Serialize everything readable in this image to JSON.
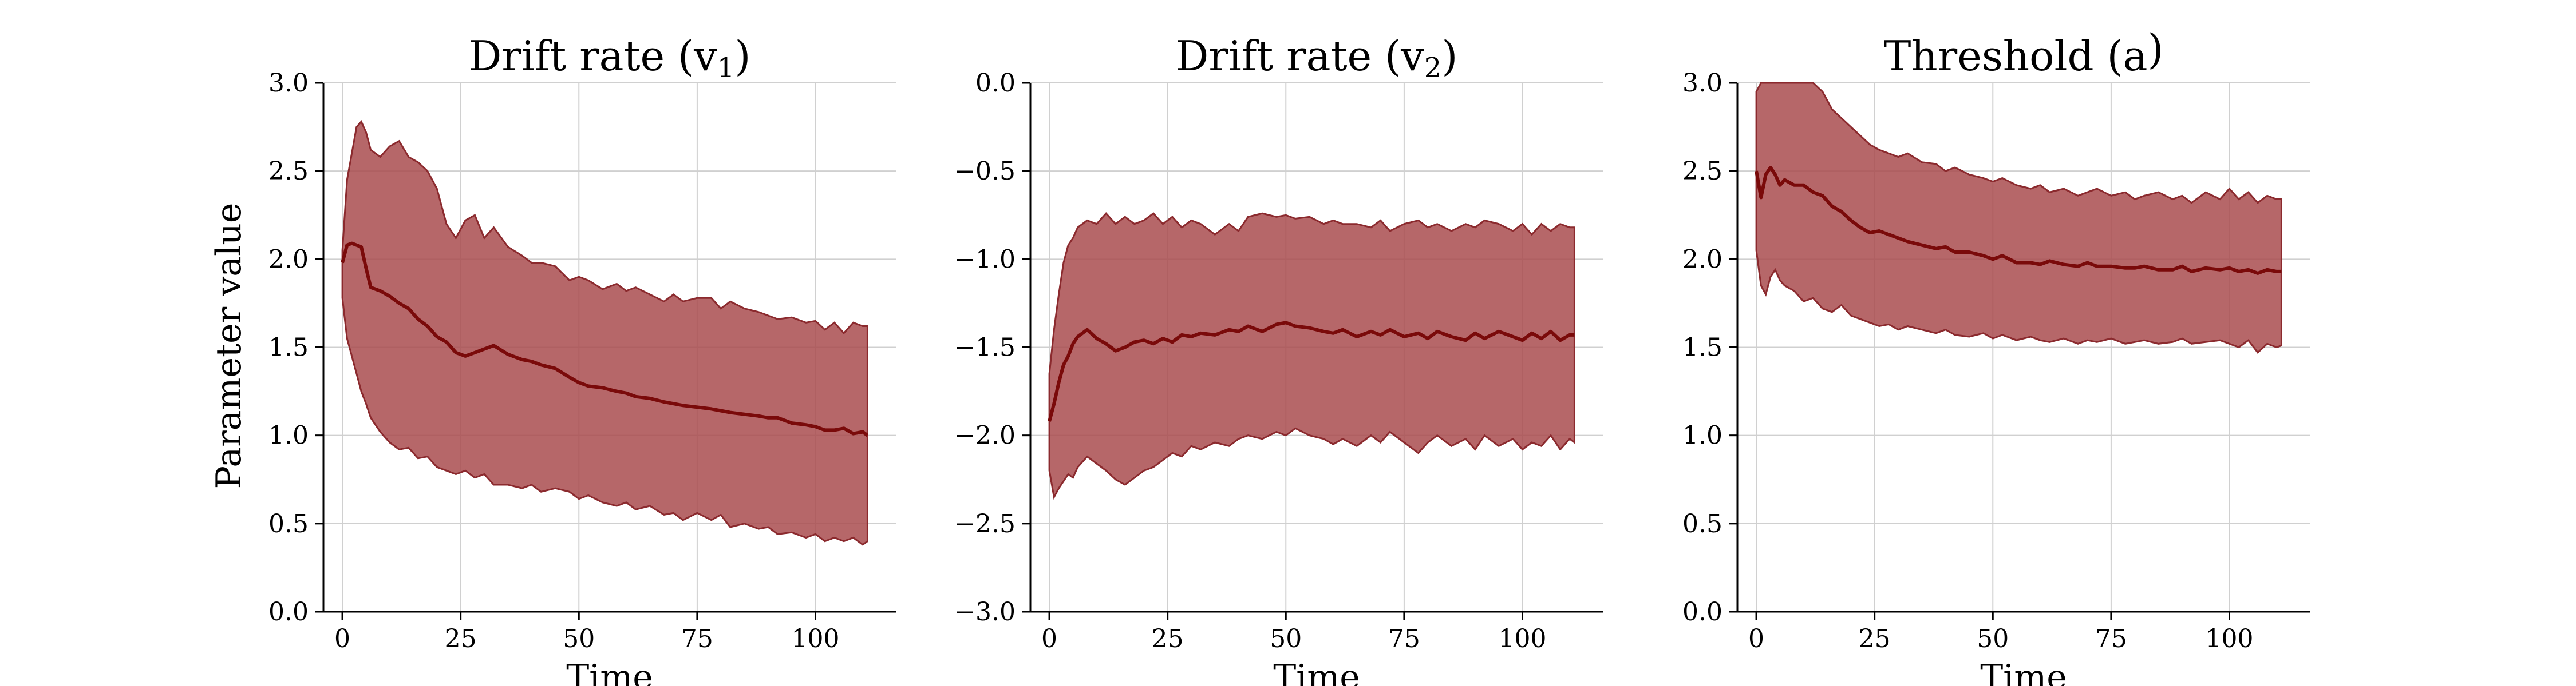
{
  "figure": {
    "ylabel": "Parameter value",
    "band_color": "#a94c4f",
    "band_edge_color": "#8b2a2e",
    "line_color": "#7a0a0a"
  },
  "chart_data": [
    {
      "type": "area",
      "title": "Drift rate (v",
      "title_sub": "1",
      "title_suffix": ")",
      "xlabel": "Time",
      "xlim": [
        -4,
        117
      ],
      "ylim": [
        0,
        3
      ],
      "xticks": [
        0,
        25,
        50,
        75,
        100
      ],
      "yticks": [
        0.0,
        0.5,
        1.0,
        1.5,
        2.0,
        2.5,
        3.0
      ],
      "ytick_labels": [
        "0.0",
        "0.5",
        "1.0",
        "1.5",
        "2.0",
        "2.5",
        "3.0"
      ],
      "grid": true,
      "x": [
        0,
        1,
        2,
        3,
        4,
        5,
        6,
        8,
        10,
        12,
        14,
        16,
        18,
        20,
        22,
        24,
        26,
        28,
        30,
        32,
        35,
        38,
        40,
        42,
        45,
        48,
        50,
        52,
        55,
        58,
        60,
        62,
        65,
        68,
        70,
        72,
        75,
        78,
        80,
        82,
        85,
        88,
        90,
        92,
        95,
        98,
        100,
        102,
        104,
        106,
        108,
        110,
        111
      ],
      "mean": [
        1.98,
        2.08,
        2.09,
        2.08,
        2.07,
        1.95,
        1.84,
        1.82,
        1.79,
        1.75,
        1.72,
        1.66,
        1.62,
        1.56,
        1.53,
        1.47,
        1.45,
        1.47,
        1.49,
        1.51,
        1.46,
        1.43,
        1.42,
        1.4,
        1.38,
        1.33,
        1.3,
        1.28,
        1.27,
        1.25,
        1.24,
        1.22,
        1.21,
        1.19,
        1.18,
        1.17,
        1.16,
        1.15,
        1.14,
        1.13,
        1.12,
        1.11,
        1.1,
        1.1,
        1.07,
        1.06,
        1.05,
        1.03,
        1.03,
        1.04,
        1.01,
        1.02,
        1.0
      ],
      "upper": [
        2.05,
        2.45,
        2.6,
        2.75,
        2.78,
        2.72,
        2.62,
        2.58,
        2.64,
        2.67,
        2.58,
        2.55,
        2.5,
        2.4,
        2.2,
        2.12,
        2.22,
        2.25,
        2.12,
        2.18,
        2.07,
        2.02,
        1.98,
        1.98,
        1.96,
        1.88,
        1.9,
        1.88,
        1.83,
        1.86,
        1.82,
        1.84,
        1.8,
        1.76,
        1.8,
        1.76,
        1.78,
        1.78,
        1.72,
        1.76,
        1.72,
        1.7,
        1.68,
        1.66,
        1.67,
        1.64,
        1.65,
        1.6,
        1.64,
        1.58,
        1.64,
        1.62,
        1.62
      ],
      "lower": [
        1.78,
        1.55,
        1.45,
        1.35,
        1.25,
        1.18,
        1.1,
        1.02,
        0.96,
        0.92,
        0.93,
        0.87,
        0.88,
        0.82,
        0.8,
        0.78,
        0.8,
        0.76,
        0.78,
        0.72,
        0.72,
        0.7,
        0.72,
        0.68,
        0.7,
        0.68,
        0.64,
        0.66,
        0.62,
        0.6,
        0.62,
        0.58,
        0.6,
        0.55,
        0.56,
        0.52,
        0.56,
        0.52,
        0.55,
        0.48,
        0.5,
        0.47,
        0.48,
        0.44,
        0.45,
        0.42,
        0.44,
        0.4,
        0.42,
        0.4,
        0.42,
        0.38,
        0.4
      ]
    },
    {
      "type": "area",
      "title": "Drift rate (v",
      "title_sub": "2",
      "title_suffix": ")",
      "xlabel": "Time",
      "xlim": [
        -4,
        117
      ],
      "ylim": [
        -3,
        0
      ],
      "xticks": [
        0,
        25,
        50,
        75,
        100
      ],
      "yticks": [
        0.0,
        -0.5,
        -1.0,
        -1.5,
        -2.0,
        -2.5,
        -3.0
      ],
      "ytick_labels": [
        "0.0",
        "−0.5",
        "−1.0",
        "−1.5",
        "−2.0",
        "−2.5",
        "−3.0"
      ],
      "grid": true,
      "x": [
        0,
        1,
        2,
        3,
        4,
        5,
        6,
        8,
        10,
        12,
        14,
        16,
        18,
        20,
        22,
        24,
        26,
        28,
        30,
        32,
        35,
        38,
        40,
        42,
        45,
        48,
        50,
        52,
        55,
        58,
        60,
        62,
        65,
        68,
        70,
        72,
        75,
        78,
        80,
        82,
        85,
        88,
        90,
        92,
        95,
        98,
        100,
        102,
        104,
        106,
        108,
        110,
        111
      ],
      "mean": [
        -1.92,
        -1.82,
        -1.7,
        -1.6,
        -1.55,
        -1.48,
        -1.44,
        -1.4,
        -1.45,
        -1.48,
        -1.52,
        -1.5,
        -1.47,
        -1.46,
        -1.48,
        -1.45,
        -1.47,
        -1.43,
        -1.44,
        -1.42,
        -1.43,
        -1.4,
        -1.41,
        -1.38,
        -1.41,
        -1.37,
        -1.36,
        -1.38,
        -1.39,
        -1.41,
        -1.42,
        -1.4,
        -1.44,
        -1.41,
        -1.43,
        -1.4,
        -1.44,
        -1.42,
        -1.45,
        -1.41,
        -1.44,
        -1.46,
        -1.42,
        -1.45,
        -1.41,
        -1.44,
        -1.46,
        -1.42,
        -1.45,
        -1.41,
        -1.46,
        -1.43,
        -1.43
      ],
      "upper": [
        -1.65,
        -1.4,
        -1.2,
        -1.02,
        -0.92,
        -0.88,
        -0.82,
        -0.78,
        -0.8,
        -0.74,
        -0.8,
        -0.76,
        -0.8,
        -0.78,
        -0.74,
        -0.8,
        -0.76,
        -0.82,
        -0.78,
        -0.8,
        -0.86,
        -0.8,
        -0.84,
        -0.76,
        -0.74,
        -0.76,
        -0.75,
        -0.77,
        -0.76,
        -0.8,
        -0.78,
        -0.8,
        -0.8,
        -0.82,
        -0.78,
        -0.84,
        -0.8,
        -0.78,
        -0.82,
        -0.8,
        -0.84,
        -0.8,
        -0.82,
        -0.78,
        -0.8,
        -0.84,
        -0.8,
        -0.86,
        -0.8,
        -0.84,
        -0.8,
        -0.82,
        -0.82
      ],
      "lower": [
        -2.2,
        -2.35,
        -2.3,
        -2.26,
        -2.22,
        -2.24,
        -2.18,
        -2.12,
        -2.16,
        -2.2,
        -2.25,
        -2.28,
        -2.24,
        -2.2,
        -2.18,
        -2.14,
        -2.1,
        -2.12,
        -2.06,
        -2.08,
        -2.04,
        -2.06,
        -2.02,
        -2.0,
        -2.02,
        -1.98,
        -2.0,
        -1.96,
        -2.0,
        -2.02,
        -2.05,
        -2.02,
        -2.06,
        -2.0,
        -2.04,
        -1.98,
        -2.04,
        -2.1,
        -2.04,
        -2.0,
        -2.06,
        -2.02,
        -2.08,
        -2.0,
        -2.06,
        -2.02,
        -2.08,
        -2.04,
        -2.06,
        -2.0,
        -2.08,
        -2.02,
        -2.04
      ]
    },
    {
      "type": "area",
      "title": "Threshold (a",
      "title_sub": "",
      "title_suffix": ")",
      "xlabel": "Time",
      "xlim": [
        -4,
        117
      ],
      "ylim": [
        0,
        3
      ],
      "xticks": [
        0,
        25,
        50,
        75,
        100
      ],
      "yticks": [
        0.0,
        0.5,
        1.0,
        1.5,
        2.0,
        2.5,
        3.0
      ],
      "ytick_labels": [
        "0.0",
        "0.5",
        "1.0",
        "1.5",
        "2.0",
        "2.5",
        "3.0"
      ],
      "grid": true,
      "x": [
        0,
        1,
        2,
        3,
        4,
        5,
        6,
        8,
        10,
        12,
        14,
        16,
        18,
        20,
        22,
        24,
        26,
        28,
        30,
        32,
        35,
        38,
        40,
        42,
        45,
        48,
        50,
        52,
        55,
        58,
        60,
        62,
        65,
        68,
        70,
        72,
        75,
        78,
        80,
        82,
        85,
        88,
        90,
        92,
        95,
        98,
        100,
        102,
        104,
        106,
        108,
        110,
        111
      ],
      "mean": [
        2.5,
        2.35,
        2.48,
        2.52,
        2.48,
        2.42,
        2.45,
        2.42,
        2.42,
        2.38,
        2.36,
        2.3,
        2.27,
        2.22,
        2.18,
        2.15,
        2.16,
        2.14,
        2.12,
        2.1,
        2.08,
        2.06,
        2.07,
        2.04,
        2.04,
        2.02,
        2.0,
        2.02,
        1.98,
        1.98,
        1.97,
        1.99,
        1.97,
        1.96,
        1.98,
        1.96,
        1.96,
        1.95,
        1.95,
        1.96,
        1.94,
        1.94,
        1.96,
        1.93,
        1.95,
        1.94,
        1.95,
        1.93,
        1.94,
        1.92,
        1.94,
        1.93,
        1.93
      ],
      "upper": [
        2.95,
        3.0,
        3.0,
        3.0,
        3.0,
        3.0,
        3.0,
        3.0,
        3.0,
        3.0,
        2.95,
        2.85,
        2.8,
        2.75,
        2.7,
        2.65,
        2.62,
        2.6,
        2.58,
        2.6,
        2.55,
        2.54,
        2.5,
        2.52,
        2.48,
        2.46,
        2.44,
        2.46,
        2.42,
        2.4,
        2.42,
        2.38,
        2.4,
        2.36,
        2.38,
        2.4,
        2.36,
        2.38,
        2.34,
        2.36,
        2.38,
        2.34,
        2.36,
        2.32,
        2.38,
        2.34,
        2.4,
        2.34,
        2.38,
        2.32,
        2.36,
        2.34,
        2.34
      ],
      "lower": [
        2.05,
        1.85,
        1.8,
        1.9,
        1.94,
        1.88,
        1.85,
        1.82,
        1.76,
        1.78,
        1.72,
        1.7,
        1.74,
        1.68,
        1.66,
        1.64,
        1.62,
        1.63,
        1.6,
        1.62,
        1.6,
        1.58,
        1.6,
        1.57,
        1.56,
        1.58,
        1.55,
        1.57,
        1.54,
        1.56,
        1.54,
        1.53,
        1.55,
        1.52,
        1.54,
        1.53,
        1.55,
        1.52,
        1.53,
        1.54,
        1.52,
        1.53,
        1.55,
        1.52,
        1.53,
        1.54,
        1.52,
        1.5,
        1.54,
        1.47,
        1.52,
        1.5,
        1.51
      ]
    }
  ]
}
